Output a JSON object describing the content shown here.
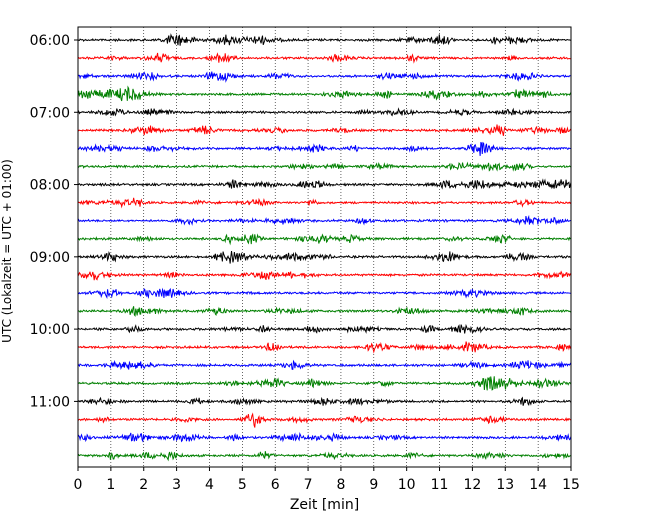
{
  "chart_data": {
    "type": "line",
    "title": "",
    "xlabel": "Zeit  [min]",
    "ylabel": "UTC (Lokalzeit = UTC + 01:00)",
    "xlim": [
      0,
      15
    ],
    "x_ticks": [
      "0",
      "1",
      "2",
      "3",
      "4",
      "5",
      "6",
      "7",
      "8",
      "9",
      "10",
      "11",
      "12",
      "13",
      "14",
      "15"
    ],
    "y_ticks": [
      "06:00",
      "07:00",
      "08:00",
      "09:00",
      "10:00",
      "11:00"
    ],
    "y_tick_rows": [
      0,
      4,
      8,
      12,
      16,
      20
    ],
    "grid": "vertical dotted lines at each minute",
    "trace_interval_min": 15,
    "traces": [
      {
        "start": "06:00",
        "color": "#000000"
      },
      {
        "start": "06:15",
        "color": "#ff0000"
      },
      {
        "start": "06:30",
        "color": "#0000ff"
      },
      {
        "start": "06:45",
        "color": "#008000"
      },
      {
        "start": "07:00",
        "color": "#000000"
      },
      {
        "start": "07:15",
        "color": "#ff0000"
      },
      {
        "start": "07:30",
        "color": "#0000ff"
      },
      {
        "start": "07:45",
        "color": "#008000"
      },
      {
        "start": "08:00",
        "color": "#000000"
      },
      {
        "start": "08:15",
        "color": "#ff0000"
      },
      {
        "start": "08:30",
        "color": "#0000ff"
      },
      {
        "start": "08:45",
        "color": "#008000"
      },
      {
        "start": "09:00",
        "color": "#000000"
      },
      {
        "start": "09:15",
        "color": "#ff0000"
      },
      {
        "start": "09:30",
        "color": "#0000ff"
      },
      {
        "start": "09:45",
        "color": "#008000"
      },
      {
        "start": "10:00",
        "color": "#000000"
      },
      {
        "start": "10:15",
        "color": "#ff0000"
      },
      {
        "start": "10:30",
        "color": "#0000ff"
      },
      {
        "start": "10:45",
        "color": "#008000"
      },
      {
        "start": "11:00",
        "color": "#000000"
      },
      {
        "start": "11:15",
        "color": "#ff0000"
      },
      {
        "start": "11:30",
        "color": "#0000ff"
      },
      {
        "start": "11:45",
        "color": "#008000"
      }
    ]
  }
}
